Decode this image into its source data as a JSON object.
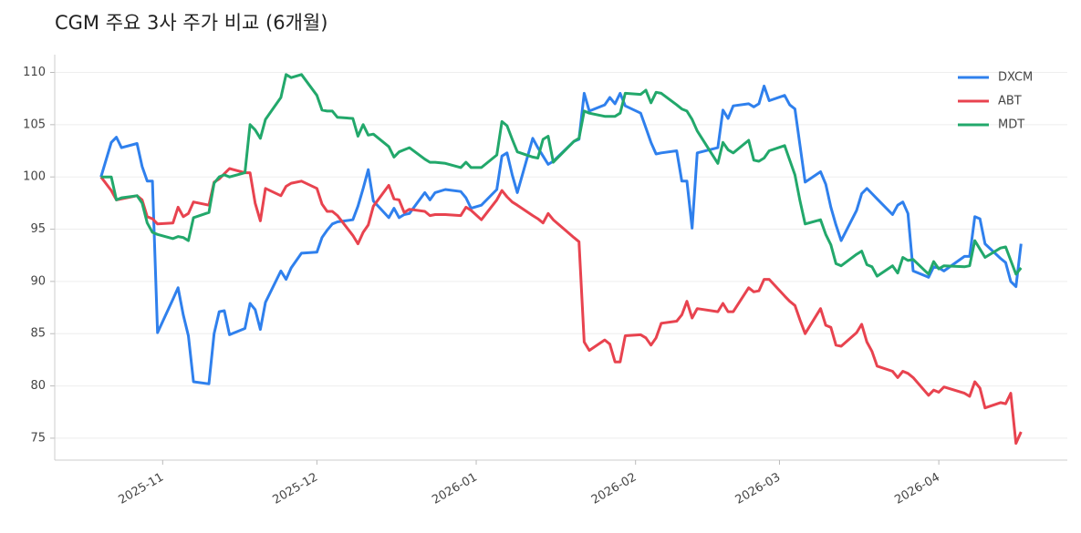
{
  "chart_data": {
    "type": "line",
    "title": "CGM 주요 3사 주가 비교 (6개월)",
    "x": [
      "2025-10-20",
      "2025-10-22",
      "2025-10-23",
      "2025-10-24",
      "2025-10-27",
      "2025-10-28",
      "2025-10-29",
      "2025-10-30",
      "2025-10-31",
      "2025-11-03",
      "2025-11-04",
      "2025-11-05",
      "2025-11-06",
      "2025-11-07",
      "2025-11-10",
      "2025-11-11",
      "2025-11-12",
      "2025-11-13",
      "2025-11-14",
      "2025-11-17",
      "2025-11-18",
      "2025-11-19",
      "2025-11-20",
      "2025-11-21",
      "2025-11-24",
      "2025-11-25",
      "2025-11-26",
      "2025-11-28",
      "2025-12-01",
      "2025-12-02",
      "2025-12-03",
      "2025-12-04",
      "2025-12-05",
      "2025-12-08",
      "2025-12-09",
      "2025-12-10",
      "2025-12-11",
      "2025-12-12",
      "2025-12-15",
      "2025-12-16",
      "2025-12-17",
      "2025-12-18",
      "2025-12-19",
      "2025-12-22",
      "2025-12-23",
      "2025-12-24",
      "2025-12-26",
      "2025-12-29",
      "2025-12-30",
      "2025-12-31",
      "2026-01-02",
      "2026-01-05",
      "2026-01-06",
      "2026-01-07",
      "2026-01-08",
      "2026-01-09",
      "2026-01-12",
      "2026-01-13",
      "2026-01-14",
      "2026-01-15",
      "2026-01-16",
      "2026-01-20",
      "2026-01-21",
      "2026-01-22",
      "2026-01-23",
      "2026-01-26",
      "2026-01-27",
      "2026-01-28",
      "2026-01-29",
      "2026-01-30",
      "2026-02-02",
      "2026-02-03",
      "2026-02-04",
      "2026-02-05",
      "2026-02-06",
      "2026-02-09",
      "2026-02-10",
      "2026-02-11",
      "2026-02-12",
      "2026-02-13",
      "2026-02-17",
      "2026-02-18",
      "2026-02-19",
      "2026-02-20",
      "2026-02-23",
      "2026-02-24",
      "2026-02-25",
      "2026-02-26",
      "2026-02-27",
      "2026-03-02",
      "2026-03-03",
      "2026-03-04",
      "2026-03-05",
      "2026-03-06",
      "2026-03-09",
      "2026-03-10",
      "2026-03-11",
      "2026-03-12",
      "2026-03-13",
      "2026-03-16",
      "2026-03-17",
      "2026-03-18",
      "2026-03-19",
      "2026-03-20",
      "2026-03-23",
      "2026-03-24",
      "2026-03-25",
      "2026-03-26",
      "2026-03-27",
      "2026-03-30",
      "2026-03-31",
      "2026-04-01",
      "2026-04-02",
      "2026-04-06",
      "2026-04-07",
      "2026-04-08",
      "2026-04-09",
      "2026-04-10",
      "2026-04-13",
      "2026-04-14",
      "2026-04-15",
      "2026-04-16",
      "2026-04-17"
    ],
    "series": [
      {
        "name": "DXCM",
        "color": "#2f80ed",
        "values": [
          100,
          103.3,
          103.8,
          102.8,
          103.2,
          101,
          99.6,
          99.6,
          85.1,
          88.3,
          89.4,
          86.8,
          84.8,
          80.4,
          80.2,
          85,
          87.1,
          87.2,
          84.9,
          85.5,
          87.9,
          87.3,
          85.4,
          88,
          91,
          90.2,
          91.3,
          92.7,
          92.8,
          94.2,
          94.9,
          95.5,
          95.7,
          95.9,
          97.2,
          98.9,
          100.7,
          97.7,
          96.1,
          97,
          96.1,
          96.4,
          96.5,
          98.5,
          97.8,
          98.5,
          98.8,
          98.6,
          98,
          97,
          97.3,
          98.8,
          102,
          102.3,
          100.2,
          98.5,
          103.7,
          102.8,
          102,
          101.2,
          101.5,
          103.4,
          103.6,
          108,
          106.3,
          106.9,
          107.6,
          107,
          108,
          106.8,
          106.1,
          104.7,
          103.3,
          102.2,
          102.3,
          102.5,
          99.6,
          99.6,
          95.1,
          102.3,
          102.8,
          106.4,
          105.6,
          106.8,
          107,
          106.7,
          107,
          108.7,
          107.3,
          107.8,
          106.9,
          106.5,
          103,
          99.5,
          100.5,
          99.3,
          97.1,
          95.4,
          93.9,
          96.8,
          98.4,
          98.9,
          98.4,
          97.9,
          96.4,
          97.3,
          97.6,
          96.5,
          91,
          90.4,
          91.4,
          91.3,
          91,
          92.4,
          92.4,
          96.2,
          96,
          93.6,
          92.2,
          91.8,
          90,
          89.5,
          93.6
        ]
      },
      {
        "name": "ABT",
        "color": "#e8434f",
        "values": [
          100,
          98.7,
          97.8,
          97.9,
          98.2,
          97.8,
          96.2,
          96,
          95.5,
          95.6,
          97.1,
          96.2,
          96.5,
          97.6,
          97.3,
          99.5,
          99.8,
          100.3,
          100.8,
          100.4,
          100.4,
          97.5,
          95.8,
          98.9,
          98.2,
          99.1,
          99.4,
          99.6,
          98.9,
          97.4,
          96.7,
          96.7,
          96.3,
          94.4,
          93.6,
          94.7,
          95.4,
          97.2,
          99.2,
          97.9,
          97.8,
          96.6,
          96.9,
          96.7,
          96.3,
          96.4,
          96.4,
          96.3,
          97.1,
          96.8,
          95.9,
          97.8,
          98.7,
          98.1,
          97.6,
          97.3,
          96.3,
          96,
          95.6,
          96.5,
          95.9,
          94.2,
          93.8,
          84.2,
          83.4,
          84.4,
          84,
          82.3,
          82.3,
          84.8,
          84.9,
          84.6,
          83.9,
          84.6,
          86,
          86.2,
          86.8,
          88.1,
          86.5,
          87.4,
          87.1,
          87.9,
          87.1,
          87.1,
          89.4,
          89,
          89.1,
          90.2,
          90.2,
          88.6,
          88.1,
          87.7,
          86.3,
          85,
          87.4,
          85.8,
          85.6,
          83.9,
          83.8,
          85.1,
          85.9,
          84.2,
          83.3,
          81.9,
          81.4,
          80.8,
          81.4,
          81.2,
          80.8,
          79.1,
          79.6,
          79.4,
          79.9,
          79.3,
          79,
          80.4,
          79.8,
          77.9,
          78.4,
          78.3,
          79.3,
          74.5,
          75.6
        ]
      },
      {
        "name": "MDT",
        "color": "#22a86b",
        "values": [
          100,
          100,
          97.8,
          98,
          98.2,
          97.5,
          95.6,
          94.7,
          94.5,
          94.1,
          94.3,
          94.2,
          93.9,
          96.1,
          96.6,
          99.4,
          100,
          100.2,
          100,
          100.4,
          105,
          104.5,
          103.7,
          105.5,
          107.6,
          109.8,
          109.5,
          109.8,
          107.8,
          106.4,
          106.3,
          106.3,
          105.7,
          105.6,
          103.9,
          105,
          104,
          104.1,
          102.9,
          101.9,
          102.4,
          102.6,
          102.8,
          101.7,
          101.4,
          101.4,
          101.3,
          100.9,
          101.4,
          100.9,
          100.9,
          102.1,
          105.3,
          104.9,
          103.6,
          102.4,
          101.9,
          101.8,
          103.6,
          103.9,
          101.4,
          103.4,
          103.7,
          106.3,
          106.1,
          105.8,
          105.8,
          105.8,
          106.1,
          108,
          107.9,
          108.3,
          107.1,
          108.1,
          108,
          106.9,
          106.5,
          106.3,
          105.5,
          104.4,
          101.3,
          103.3,
          102.6,
          102.3,
          103.5,
          101.6,
          101.5,
          101.8,
          102.5,
          103,
          101.6,
          100.2,
          97.7,
          95.5,
          95.9,
          94.5,
          93.5,
          91.7,
          91.5,
          92.6,
          92.9,
          91.6,
          91.4,
          90.5,
          91.5,
          90.8,
          92.3,
          92,
          92.1,
          90.7,
          91.9,
          91.2,
          91.5,
          91.4,
          91.5,
          93.9,
          93.1,
          92.3,
          93.2,
          93.3,
          92,
          90.7,
          91.3
        ]
      }
    ],
    "xlim": [
      "2025-10-11",
      "2026-04-26"
    ],
    "xticks": [
      {
        "value": "2025-11-01",
        "label": "2025-11"
      },
      {
        "value": "2025-12-01",
        "label": "2025-12"
      },
      {
        "value": "2026-01-01",
        "label": "2026-01"
      },
      {
        "value": "2026-02-01",
        "label": "2026-02"
      },
      {
        "value": "2026-03-01",
        "label": "2026-03"
      },
      {
        "value": "2026-04-01",
        "label": "2026-04"
      }
    ],
    "ylim": [
      72.9,
      111.7
    ],
    "yticks": [
      75,
      80,
      85,
      90,
      95,
      100,
      105,
      110
    ],
    "grid": true,
    "legend": "upper right"
  }
}
